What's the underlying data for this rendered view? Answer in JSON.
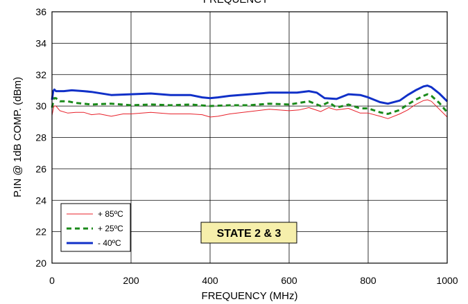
{
  "chart_data": {
    "type": "line",
    "title": "FREQUENCY",
    "xlabel": "FREQUENCY (MHz)",
    "ylabel": "P.IN @ 1dB COMP. (dBm)",
    "xlim": [
      0,
      1000
    ],
    "ylim": [
      20,
      36
    ],
    "xticks": [
      "0",
      "200",
      "400",
      "600",
      "800",
      "1000"
    ],
    "yticks": [
      "20",
      "22",
      "24",
      "26",
      "28",
      "30",
      "32",
      "34",
      "36"
    ],
    "grid": true,
    "legend_position": "bottom-left",
    "annotation": "STATE 2 & 3",
    "series": [
      {
        "name": "+ 85ºC",
        "color": "#e8202a",
        "style": "solid-thin",
        "x": [
          0,
          5,
          10,
          20,
          40,
          60,
          80,
          100,
          120,
          150,
          180,
          200,
          250,
          300,
          350,
          380,
          400,
          420,
          450,
          500,
          550,
          600,
          625,
          650,
          680,
          700,
          720,
          750,
          780,
          800,
          830,
          850,
          880,
          900,
          920,
          940,
          950,
          960,
          980,
          1000
        ],
        "y": [
          29.4,
          30.0,
          30.0,
          29.7,
          29.55,
          29.6,
          29.6,
          29.45,
          29.5,
          29.35,
          29.5,
          29.5,
          29.6,
          29.5,
          29.5,
          29.45,
          29.3,
          29.35,
          29.5,
          29.65,
          29.8,
          29.7,
          29.75,
          29.9,
          29.65,
          29.9,
          29.75,
          29.85,
          29.55,
          29.55,
          29.35,
          29.2,
          29.5,
          29.75,
          30.1,
          30.35,
          30.4,
          30.3,
          29.8,
          29.3
        ]
      },
      {
        "name": "+ 25ºC",
        "color": "#1a8a1a",
        "style": "dashed",
        "x": [
          0,
          5,
          10,
          20,
          40,
          60,
          80,
          100,
          150,
          200,
          250,
          300,
          350,
          400,
          450,
          500,
          550,
          600,
          625,
          650,
          680,
          700,
          720,
          750,
          780,
          800,
          830,
          850,
          880,
          900,
          920,
          940,
          950,
          960,
          980,
          1000
        ],
        "y": [
          29.9,
          30.5,
          30.5,
          30.3,
          30.3,
          30.2,
          30.15,
          30.1,
          30.15,
          30.05,
          30.1,
          30.05,
          30.1,
          30.0,
          30.05,
          30.05,
          30.15,
          30.1,
          30.2,
          30.3,
          30.0,
          30.25,
          29.9,
          30.1,
          29.85,
          29.85,
          29.6,
          29.5,
          29.75,
          30.1,
          30.4,
          30.65,
          30.75,
          30.65,
          30.2,
          29.6
        ]
      },
      {
        "name": "- 40ºC",
        "color": "#1030c8",
        "style": "solid-thick",
        "x": [
          0,
          3,
          6,
          10,
          20,
          30,
          50,
          80,
          100,
          150,
          200,
          250,
          300,
          350,
          380,
          400,
          420,
          450,
          500,
          550,
          600,
          620,
          650,
          670,
          690,
          720,
          750,
          780,
          800,
          830,
          850,
          880,
          900,
          920,
          940,
          950,
          960,
          980,
          1000
        ],
        "y": [
          30.4,
          30.95,
          31.05,
          30.95,
          30.95,
          30.95,
          31.0,
          30.95,
          30.9,
          30.7,
          30.75,
          30.8,
          30.7,
          30.7,
          30.55,
          30.5,
          30.55,
          30.65,
          30.75,
          30.85,
          30.85,
          30.85,
          30.95,
          30.85,
          30.5,
          30.45,
          30.75,
          30.7,
          30.55,
          30.25,
          30.15,
          30.35,
          30.7,
          31.0,
          31.25,
          31.3,
          31.2,
          30.8,
          30.3
        ]
      }
    ]
  }
}
